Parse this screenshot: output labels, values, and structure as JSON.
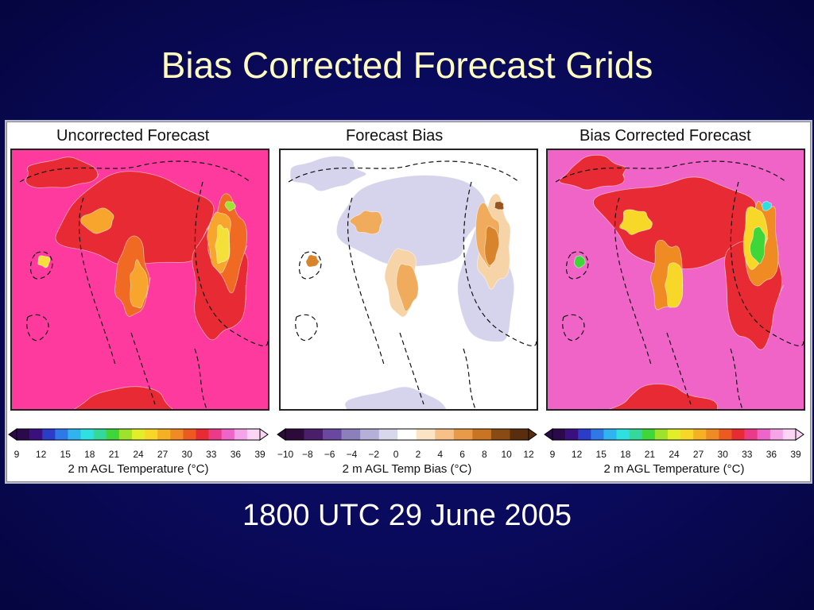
{
  "slide": {
    "title": "Bias Corrected Forecast Grids",
    "date_line": "1800 UTC 29 June 2005"
  },
  "panels": [
    {
      "title": "Uncorrected Forecast",
      "colorbar": {
        "label": "2 m AGL Temperature (°C)",
        "ticks": [
          "9",
          "12",
          "15",
          "18",
          "21",
          "24",
          "27",
          "30",
          "33",
          "36",
          "39"
        ],
        "colors": [
          "#2a0a4a",
          "#3a1080",
          "#2a3cc8",
          "#2f78e8",
          "#30b4f0",
          "#2ee0e0",
          "#33d89a",
          "#3fd63a",
          "#9ee22c",
          "#e2ee28",
          "#f7d828",
          "#f6b024",
          "#f08a22",
          "#ec5a22",
          "#e82a34",
          "#ea3a88",
          "#ee64c8",
          "#f5a4e8",
          "#fcd4f4"
        ]
      },
      "ramp": [
        "#ff3a9e",
        "#e82a34",
        "#f06a24",
        "#f7a52c",
        "#f5e03a",
        "#9ee234"
      ]
    },
    {
      "title": "Forecast Bias",
      "colorbar": {
        "label": "2 m AGL Temp Bias (°C)",
        "ticks": [
          "−10",
          "−8",
          "−6",
          "−4",
          "−2",
          "0",
          "2",
          "4",
          "6",
          "8",
          "10",
          "12"
        ],
        "colors": [
          "#2c0a3a",
          "#4a1e6a",
          "#6a48a0",
          "#8c80bc",
          "#b4b0d8",
          "#d8d8ec",
          "#ffffff",
          "#fbe4c4",
          "#f6c088",
          "#e89a48",
          "#c87420",
          "#8a4a14",
          "#5a2e0c"
        ]
      },
      "ramp": [
        "#ffffff",
        "#d6d4ec",
        "#f7d4a8",
        "#f0ac5c",
        "#d8842c",
        "#9a5420"
      ]
    },
    {
      "title": "Bias Corrected Forecast",
      "colorbar": {
        "label": "2 m AGL Temperature (°C)",
        "ticks": [
          "9",
          "12",
          "15",
          "18",
          "21",
          "24",
          "27",
          "30",
          "33",
          "36",
          "39"
        ],
        "colors": [
          "#2a0a4a",
          "#3a1080",
          "#2a3cc8",
          "#2f78e8",
          "#30b4f0",
          "#2ee0e0",
          "#33d89a",
          "#3fd63a",
          "#9ee22c",
          "#e2ee28",
          "#f7d828",
          "#f6b024",
          "#f08a22",
          "#ec5a22",
          "#e82a34",
          "#ea3a88",
          "#ee64c8",
          "#f5a4e8",
          "#fcd4f4"
        ]
      },
      "ramp": [
        "#f064c8",
        "#e82a34",
        "#f08a22",
        "#f7d828",
        "#3fd63a",
        "#2ee0e0"
      ]
    }
  ]
}
